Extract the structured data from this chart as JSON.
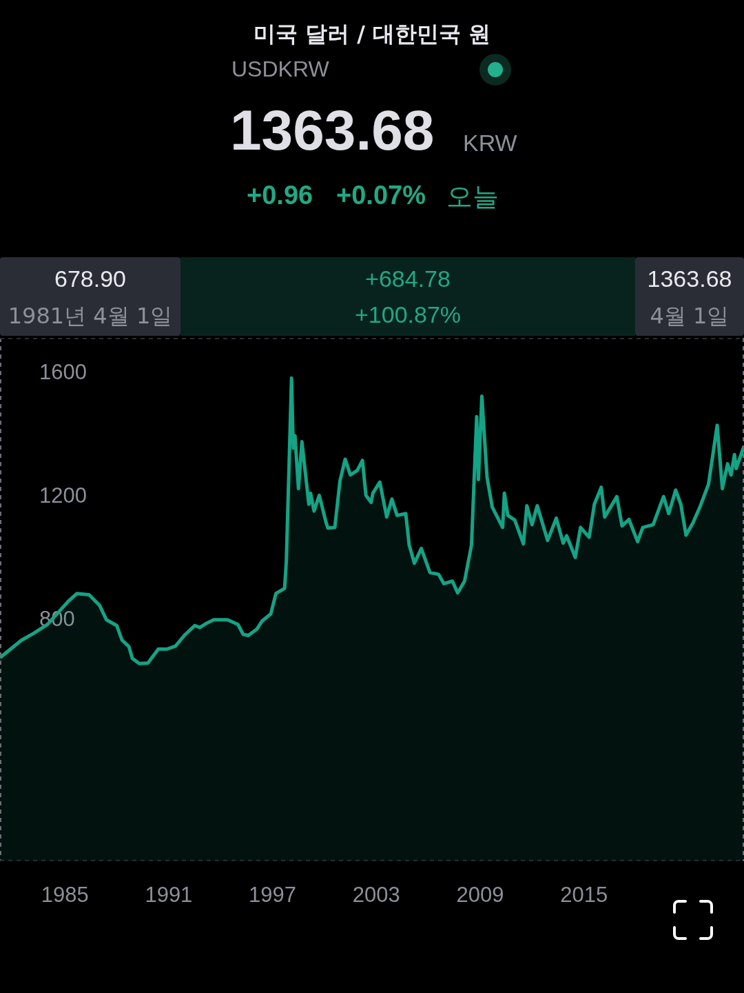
{
  "chart_data": {
    "type": "area",
    "title": "미국 달러 / 대한민국 원",
    "subtitle": "USDKRW",
    "annotations": [
      "1363.68",
      "KRW",
      "+0.96",
      "+0.07%",
      "오늘",
      "678.90",
      "1981년 4월 1일",
      "+684.78",
      "+100.87%",
      "1363.68",
      "4월 1일"
    ],
    "xlim": [
      1981.25,
      2024.25
    ],
    "xticks": [
      1985,
      1991,
      1997,
      2003,
      2009,
      2015
    ],
    "ylim": [
      20,
      1715
    ],
    "yticks": [
      800,
      1200,
      1600
    ],
    "legend": false,
    "series": [
      {
        "color": "#14a385",
        "x": [
          1981.25,
          1982.5,
          1983.2,
          1984.0,
          1985.2,
          1985.7,
          1986.4,
          1987.0,
          1987.4,
          1988.0,
          1988.3,
          1988.7,
          1988.9,
          1989.3,
          1989.8,
          1990.4,
          1990.9,
          1991.4,
          1991.9,
          1992.5,
          1992.8,
          1993.2,
          1993.6,
          1994.4,
          1995.0,
          1995.3,
          1995.6,
          1996.1,
          1996.4,
          1996.9,
          1997.2,
          1997.7,
          1997.8,
          1998.1,
          1998.2,
          1998.3,
          1998.5,
          1998.7,
          1999.1,
          1999.2,
          1999.4,
          1999.7,
          2000.1,
          2000.2,
          2000.6,
          2000.9,
          2001.2,
          2001.5,
          2001.9,
          2002.2,
          2002.4,
          2002.7,
          2002.8,
          2003.2,
          2003.6,
          2003.9,
          2004.2,
          2004.7,
          2004.9,
          2005.2,
          2005.6,
          2006.1,
          2006.6,
          2006.9,
          2007.4,
          2007.7,
          2008.1,
          2008.5,
          2008.8,
          2008.9,
          2009.1,
          2009.4,
          2009.7,
          2010.3,
          2010.4,
          2010.6,
          2011.0,
          2011.5,
          2011.7,
          2012.0,
          2012.3,
          2012.9,
          2013.4,
          2013.8,
          2014.0,
          2014.5,
          2014.8,
          2015.3,
          2015.6,
          2016.0,
          2016.2,
          2016.9,
          2017.2,
          2017.6,
          2018.1,
          2018.4,
          2019.0,
          2019.6,
          2019.9,
          2020.3,
          2020.6,
          2020.9,
          2021.3,
          2021.7,
          2022.2,
          2022.7,
          2023.0,
          2023.3,
          2023.5,
          2023.7,
          2023.8,
          2024.25
        ],
        "values": [
          679,
          736,
          758,
          787,
          862,
          887,
          883,
          849,
          802,
          783,
          736,
          715,
          677,
          660,
          662,
          707,
          707,
          717,
          751,
          783,
          777,
          791,
          802,
          802,
          787,
          755,
          751,
          772,
          798,
          821,
          887,
          904,
          993,
          1585,
          1358,
          1398,
          1227,
          1379,
          1176,
          1212,
          1154,
          1205,
          1116,
          1099,
          1101,
          1252,
          1322,
          1271,
          1286,
          1318,
          1205,
          1182,
          1212,
          1248,
          1135,
          1193,
          1140,
          1146,
          1044,
          985,
          1033,
          955,
          949,
          919,
          927,
          889,
          927,
          1044,
          1460,
          1256,
          1526,
          1263,
          1167,
          1101,
          1212,
          1140,
          1125,
          1048,
          1171,
          1110,
          1171,
          1059,
          1131,
          1050,
          1074,
          1004,
          1101,
          1069,
          1176,
          1231,
          1135,
          1201,
          1106,
          1127,
          1055,
          1101,
          1110,
          1201,
          1146,
          1222,
          1176,
          1076,
          1116,
          1167,
          1241,
          1432,
          1227,
          1307,
          1271,
          1337,
          1292,
          1364
        ]
      }
    ]
  }
}
